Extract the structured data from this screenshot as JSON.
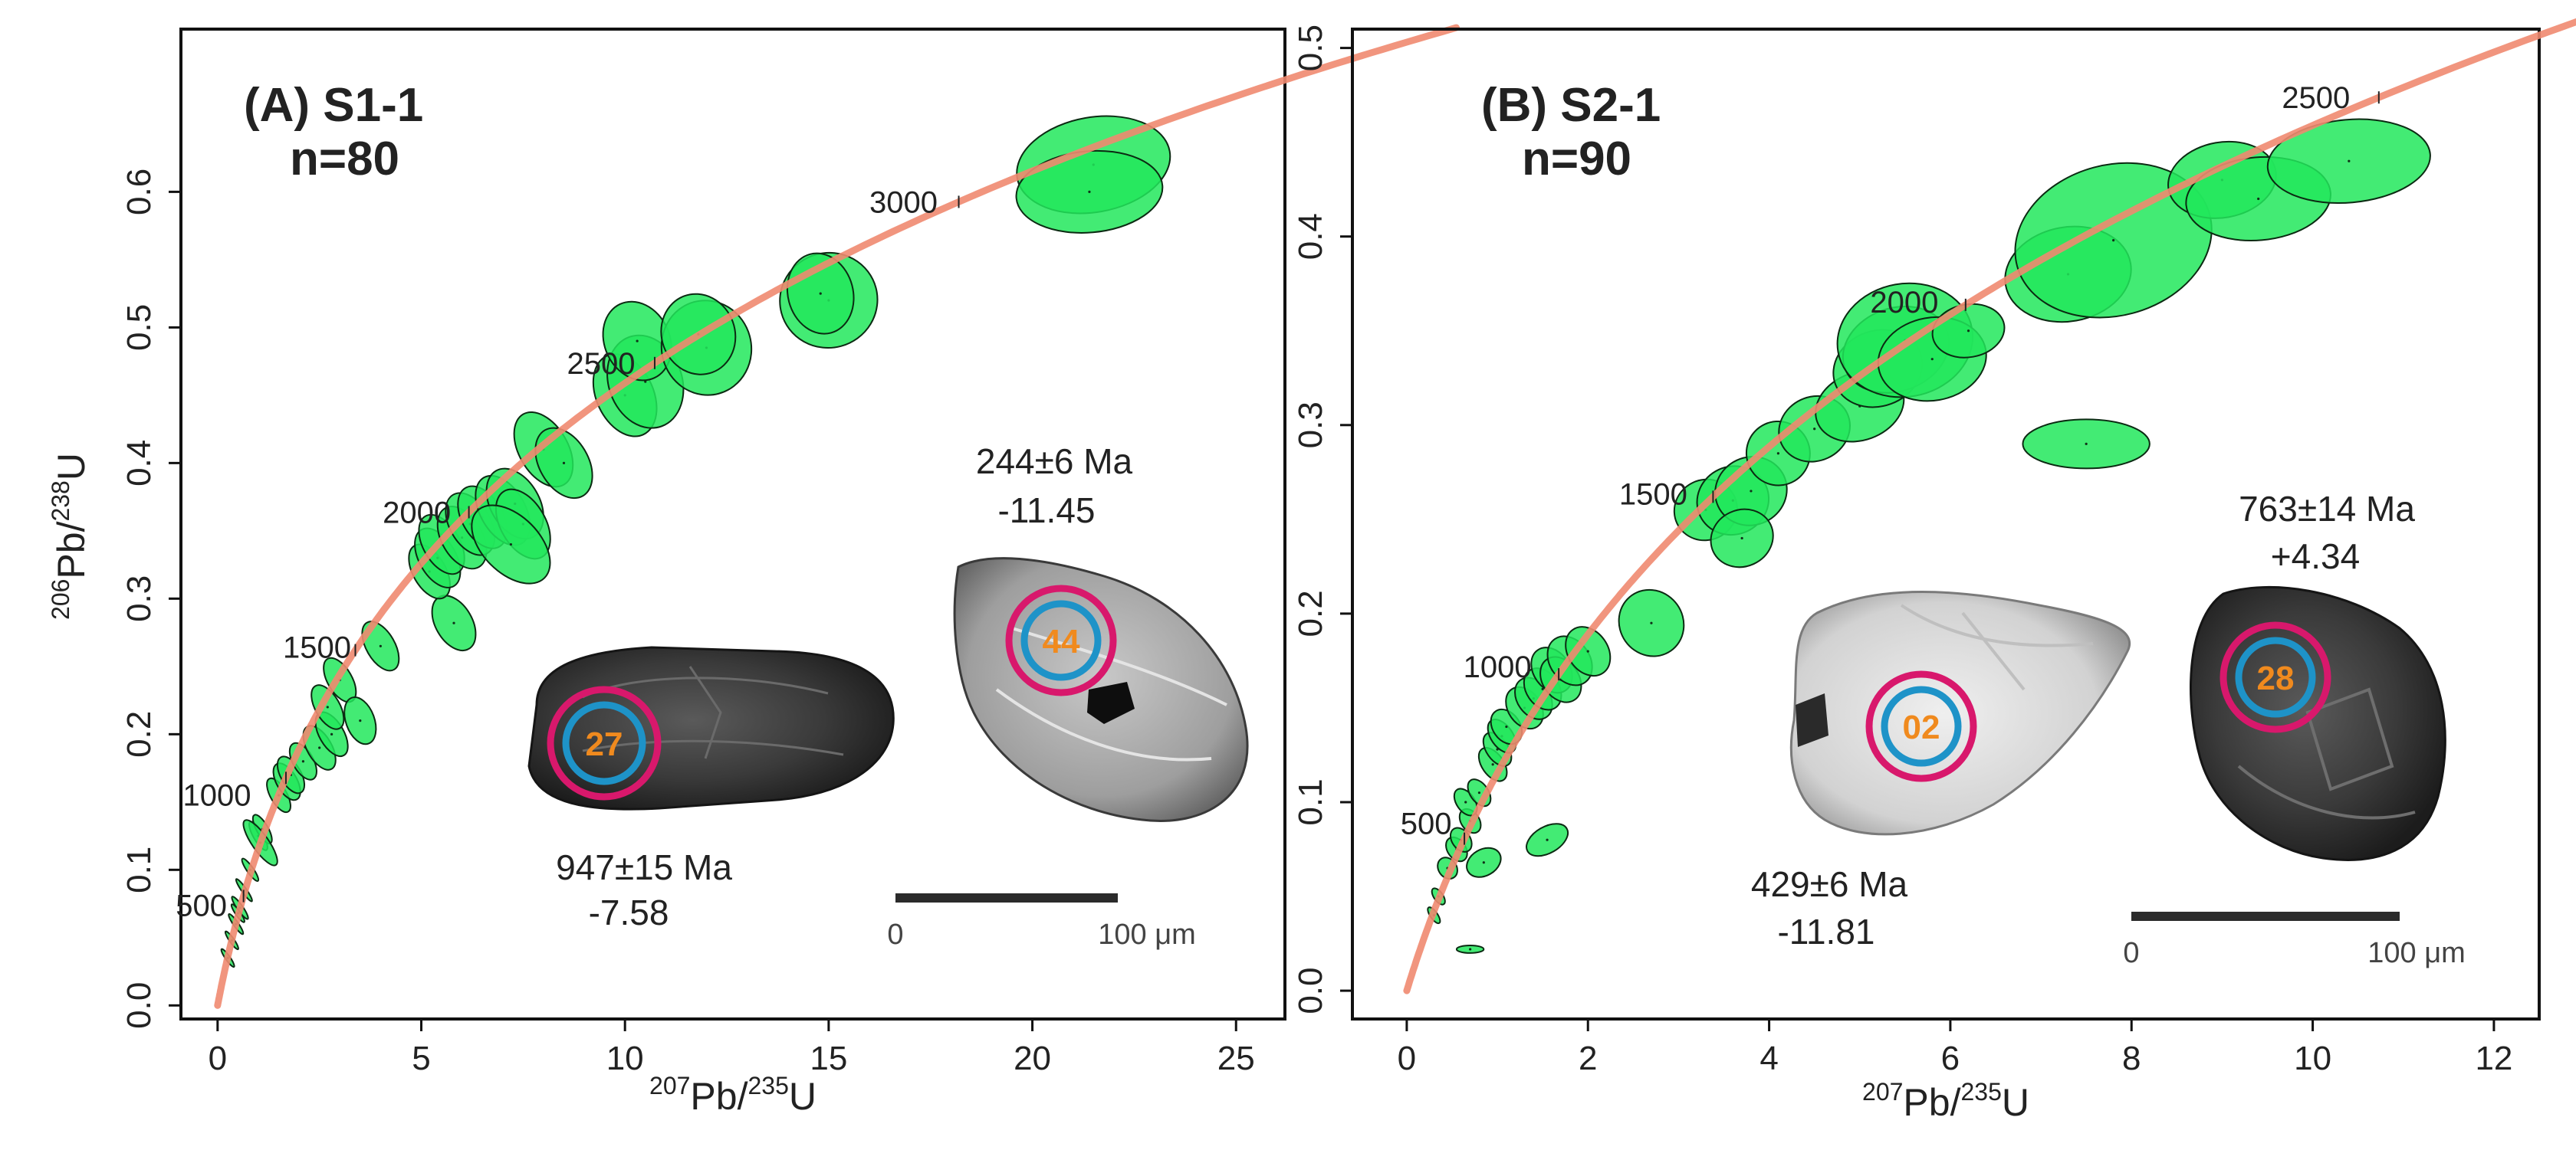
{
  "colors": {
    "ellipse_fill": "#22e85c",
    "ellipse_stroke": "#0b2a12",
    "concordia": "#f08a70",
    "pink_ring": "#d8186c",
    "blue_ring": "#1e93c8",
    "spot_label": "#f08a1e",
    "text": "#222222",
    "scale_bar": "#2b2b2b"
  },
  "chart_data": [
    {
      "type": "scatter",
      "subtype": "concordia-error-ellipses",
      "panel_label": "(A) S1-1",
      "n_label": "n=80",
      "xlabel": {
        "sup1": "207",
        "base1": "Pb/",
        "sup2": "235",
        "base2": "U"
      },
      "ylabel": {
        "sup1": "206",
        "base1": "Pb/",
        "sup2": "238",
        "base2": "U"
      },
      "xlim": [
        -0.9,
        26.2
      ],
      "ylim": [
        -0.01,
        0.72
      ],
      "xticks": [
        0,
        5,
        10,
        15,
        20,
        25
      ],
      "xtick_labels": [
        "0",
        "5",
        "10",
        "15",
        "20",
        "25"
      ],
      "yticks": [
        0.0,
        0.1,
        0.2,
        0.3,
        0.4,
        0.5,
        0.6
      ],
      "ytick_labels": [
        "0.0",
        "0.1",
        "0.2",
        "0.3",
        "0.4",
        "0.5",
        "0.6"
      ],
      "concordia_age_labels": [
        {
          "age": 500,
          "label": "500"
        },
        {
          "age": 1000,
          "label": "1000"
        },
        {
          "age": 1500,
          "label": "1500"
        },
        {
          "age": 2000,
          "label": "2000"
        },
        {
          "age": 2500,
          "label": "2500"
        },
        {
          "age": 3000,
          "label": "3000"
        }
      ],
      "concordia_max_age": 3500,
      "ellipses": [
        [
          0.25,
          0.035,
          0.05,
          0.008,
          35
        ],
        [
          0.35,
          0.048,
          0.05,
          0.008,
          35
        ],
        [
          0.45,
          0.06,
          0.06,
          0.009,
          35
        ],
        [
          0.55,
          0.072,
          0.07,
          0.01,
          35
        ],
        [
          0.5,
          0.068,
          0.06,
          0.008,
          35
        ],
        [
          0.65,
          0.085,
          0.06,
          0.01,
          35
        ],
        [
          0.8,
          0.1,
          0.08,
          0.01,
          35
        ],
        [
          1.0,
          0.125,
          0.12,
          0.012,
          30
        ],
        [
          1.1,
          0.13,
          0.14,
          0.012,
          30
        ],
        [
          1.05,
          0.12,
          0.2,
          0.02,
          35
        ],
        [
          1.5,
          0.155,
          0.2,
          0.014,
          30
        ],
        [
          1.7,
          0.165,
          0.25,
          0.015,
          30
        ],
        [
          1.8,
          0.17,
          0.25,
          0.015,
          30
        ],
        [
          2.1,
          0.18,
          0.25,
          0.015,
          30
        ],
        [
          2.5,
          0.19,
          0.3,
          0.018,
          30
        ],
        [
          2.8,
          0.2,
          0.3,
          0.018,
          30
        ],
        [
          2.7,
          0.22,
          0.3,
          0.018,
          30
        ],
        [
          3.0,
          0.24,
          0.3,
          0.018,
          30
        ],
        [
          3.5,
          0.21,
          0.35,
          0.018,
          20
        ],
        [
          4.0,
          0.265,
          0.35,
          0.02,
          30
        ],
        [
          5.8,
          0.282,
          0.45,
          0.022,
          30
        ],
        [
          5.2,
          0.32,
          0.4,
          0.022,
          30
        ],
        [
          5.4,
          0.33,
          0.45,
          0.024,
          30
        ],
        [
          5.5,
          0.34,
          0.45,
          0.024,
          30
        ],
        [
          6.0,
          0.345,
          0.5,
          0.025,
          30
        ],
        [
          6.2,
          0.355,
          0.5,
          0.025,
          30
        ],
        [
          6.5,
          0.36,
          0.5,
          0.025,
          30
        ],
        [
          7.0,
          0.365,
          0.55,
          0.028,
          30
        ],
        [
          7.3,
          0.37,
          0.6,
          0.028,
          30
        ],
        [
          7.5,
          0.355,
          0.55,
          0.028,
          30
        ],
        [
          7.2,
          0.34,
          0.7,
          0.035,
          45
        ],
        [
          8.0,
          0.41,
          0.6,
          0.03,
          30
        ],
        [
          8.5,
          0.4,
          0.6,
          0.028,
          30
        ],
        [
          10.0,
          0.45,
          0.7,
          0.032,
          25
        ],
        [
          10.5,
          0.46,
          0.9,
          0.035,
          20
        ],
        [
          10.3,
          0.49,
          0.8,
          0.03,
          25
        ],
        [
          12.0,
          0.485,
          1.1,
          0.035,
          15
        ],
        [
          11.8,
          0.495,
          0.9,
          0.03,
          20
        ],
        [
          15.0,
          0.52,
          1.2,
          0.035,
          15
        ],
        [
          14.8,
          0.525,
          0.8,
          0.03,
          15
        ],
        [
          21.5,
          0.62,
          1.9,
          0.035,
          10
        ],
        [
          21.4,
          0.6,
          1.8,
          0.03,
          5
        ]
      ]
    },
    {
      "type": "scatter",
      "subtype": "concordia-error-ellipses",
      "panel_label": "(B) S2-1",
      "n_label": "n=90",
      "xlabel": {
        "sup1": "207",
        "base1": "Pb/",
        "sup2": "235",
        "base2": "U"
      },
      "ylabel": {
        "sup1": "206",
        "base1": "Pb/",
        "sup2": "238",
        "base2": "U"
      },
      "xlim": [
        -0.6,
        12.5
      ],
      "ylim": [
        -0.015,
        0.51
      ],
      "xticks": [
        0,
        2,
        4,
        6,
        8,
        10,
        12
      ],
      "xtick_labels": [
        "0",
        "2",
        "4",
        "6",
        "8",
        "10",
        "12"
      ],
      "yticks": [
        0.0,
        0.1,
        0.2,
        0.3,
        0.4,
        0.5
      ],
      "ytick_labels": [
        "0.0",
        "0.1",
        "0.2",
        "0.3",
        "0.4",
        "0.5"
      ],
      "concordia_age_labels": [
        {
          "age": 500,
          "label": "500"
        },
        {
          "age": 1000,
          "label": "1000"
        },
        {
          "age": 1500,
          "label": "1500"
        },
        {
          "age": 2000,
          "label": "2000"
        },
        {
          "age": 2500,
          "label": "2500"
        }
      ],
      "concordia_max_age": 2950,
      "ellipses": [
        [
          0.3,
          0.04,
          0.04,
          0.005,
          35
        ],
        [
          0.35,
          0.05,
          0.05,
          0.005,
          35
        ],
        [
          0.45,
          0.065,
          0.1,
          0.006,
          35
        ],
        [
          0.55,
          0.075,
          0.1,
          0.007,
          35
        ],
        [
          0.6,
          0.08,
          0.1,
          0.007,
          35
        ],
        [
          0.7,
          0.09,
          0.1,
          0.007,
          35
        ],
        [
          0.65,
          0.1,
          0.1,
          0.008,
          35
        ],
        [
          0.8,
          0.105,
          0.1,
          0.008,
          35
        ],
        [
          0.95,
          0.12,
          0.12,
          0.01,
          35
        ],
        [
          1.0,
          0.128,
          0.12,
          0.01,
          35
        ],
        [
          1.05,
          0.135,
          0.12,
          0.01,
          35
        ],
        [
          1.1,
          0.14,
          0.15,
          0.01,
          35
        ],
        [
          1.3,
          0.15,
          0.18,
          0.012,
          35
        ],
        [
          1.4,
          0.155,
          0.18,
          0.012,
          35
        ],
        [
          1.5,
          0.16,
          0.18,
          0.012,
          35
        ],
        [
          1.6,
          0.17,
          0.2,
          0.013,
          35
        ],
        [
          1.7,
          0.165,
          0.2,
          0.013,
          35
        ],
        [
          1.8,
          0.175,
          0.22,
          0.014,
          35
        ],
        [
          2.0,
          0.18,
          0.22,
          0.014,
          35
        ],
        [
          2.7,
          0.195,
          0.35,
          0.018,
          35
        ],
        [
          0.85,
          0.068,
          0.2,
          0.007,
          30
        ],
        [
          1.55,
          0.08,
          0.25,
          0.007,
          30
        ],
        [
          0.7,
          0.022,
          0.15,
          0.002,
          0
        ],
        [
          3.3,
          0.255,
          0.35,
          0.016,
          25
        ],
        [
          3.6,
          0.26,
          0.4,
          0.018,
          25
        ],
        [
          3.8,
          0.265,
          0.4,
          0.018,
          25
        ],
        [
          3.7,
          0.24,
          0.35,
          0.015,
          25
        ],
        [
          4.1,
          0.285,
          0.35,
          0.017,
          25
        ],
        [
          4.5,
          0.298,
          0.4,
          0.017,
          25
        ],
        [
          5.0,
          0.31,
          0.5,
          0.018,
          20
        ],
        [
          5.2,
          0.33,
          0.5,
          0.02,
          20
        ],
        [
          5.4,
          0.34,
          0.6,
          0.022,
          20
        ],
        [
          5.5,
          0.345,
          0.75,
          0.03,
          10
        ],
        [
          5.8,
          0.335,
          0.6,
          0.022,
          10
        ],
        [
          6.2,
          0.35,
          0.4,
          0.014,
          10
        ],
        [
          7.3,
          0.38,
          0.7,
          0.025,
          10
        ],
        [
          7.8,
          0.398,
          1.1,
          0.04,
          15
        ],
        [
          7.5,
          0.29,
          0.7,
          0.013,
          0
        ],
        [
          9.0,
          0.43,
          0.6,
          0.02,
          10
        ],
        [
          9.4,
          0.42,
          0.8,
          0.022,
          5
        ],
        [
          10.4,
          0.44,
          0.9,
          0.022,
          5
        ]
      ]
    }
  ],
  "annotations": {
    "a": {
      "grain1_age": "947±15 Ma",
      "grain1_value": "-7.58",
      "grain1_spot": "27",
      "grain2_age": "244±6 Ma",
      "grain2_value": "-11.45",
      "grain2_spot": "44",
      "scale_start": "0",
      "scale_end": "100 μm"
    },
    "b": {
      "grain1_age": "429±6 Ma",
      "grain1_value": "-11.81",
      "grain1_spot": "02",
      "grain2_age": "763±14 Ma",
      "grain2_value": "+4.34",
      "grain2_spot": "28",
      "scale_start": "0",
      "scale_end": "100 μm"
    }
  }
}
